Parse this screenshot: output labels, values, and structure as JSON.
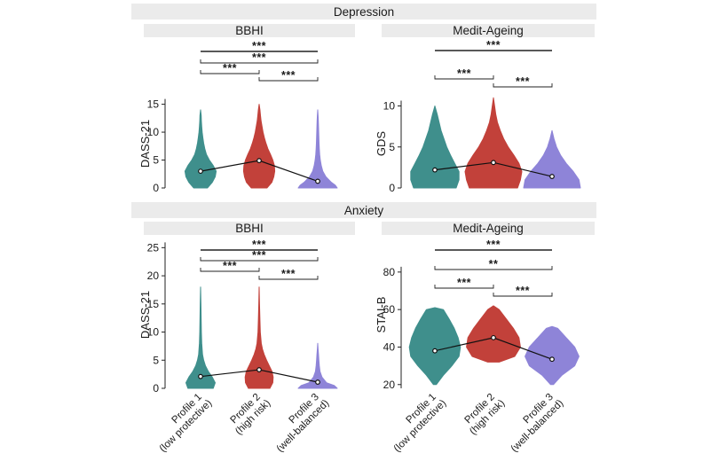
{
  "colors": {
    "profile1": "#3f8f8c",
    "profile2": "#c2413a",
    "profile3": "#8e84d8",
    "band": "#ebebeb"
  },
  "sections": [
    {
      "title": "Depression"
    },
    {
      "title": "Anxiety"
    }
  ],
  "x_categories": [
    [
      "Profile 1",
      "(low protective)"
    ],
    [
      "Profile 2",
      "(high risk)"
    ],
    [
      "Profile 3",
      "(well-balanced)"
    ]
  ],
  "chart_data": [
    {
      "type": "violin",
      "section": "Depression",
      "title": "BBHI",
      "ylabel": "DASS-21",
      "ylim": [
        0,
        17
      ],
      "yticks": [
        0,
        5,
        10,
        15
      ],
      "categories": [
        "Profile 1 (low protective)",
        "Profile 2 (high risk)",
        "Profile 3 (well-balanced)"
      ],
      "means": [
        3,
        4.9,
        1.2
      ],
      "series": [
        {
          "range": [
            0,
            14
          ],
          "density": [
            [
              0,
              0.35
            ],
            [
              1,
              0.6
            ],
            [
              2,
              0.75
            ],
            [
              3,
              0.8
            ],
            [
              4,
              0.65
            ],
            [
              5,
              0.45
            ],
            [
              6,
              0.3
            ],
            [
              7,
              0.22
            ],
            [
              8,
              0.16
            ],
            [
              9,
              0.12
            ],
            [
              10,
              0.08
            ],
            [
              11,
              0.06
            ],
            [
              12,
              0.04
            ],
            [
              13,
              0.03
            ],
            [
              14,
              0
            ]
          ]
        },
        {
          "range": [
            0,
            15
          ],
          "density": [
            [
              0,
              0.4
            ],
            [
              1,
              0.65
            ],
            [
              2,
              0.75
            ],
            [
              3,
              0.8
            ],
            [
              4,
              0.78
            ],
            [
              5,
              0.7
            ],
            [
              6,
              0.58
            ],
            [
              7,
              0.45
            ],
            [
              8,
              0.35
            ],
            [
              9,
              0.27
            ],
            [
              10,
              0.2
            ],
            [
              11,
              0.15
            ],
            [
              12,
              0.1
            ],
            [
              13,
              0.07
            ],
            [
              14,
              0.04
            ],
            [
              15,
              0
            ]
          ]
        },
        {
          "range": [
            0,
            14
          ],
          "density": [
            [
              0,
              1
            ],
            [
              0.5,
              0.9
            ],
            [
              1,
              0.7
            ],
            [
              2,
              0.42
            ],
            [
              3,
              0.26
            ],
            [
              4,
              0.18
            ],
            [
              5,
              0.13
            ],
            [
              6,
              0.1
            ],
            [
              7,
              0.08
            ],
            [
              8,
              0.07
            ],
            [
              9,
              0.06
            ],
            [
              10,
              0.05
            ],
            [
              11,
              0.04
            ],
            [
              12,
              0.03
            ],
            [
              13,
              0.02
            ],
            [
              14,
              0
            ]
          ]
        }
      ],
      "comparisons": [
        {
          "pair": [
            1,
            3
          ],
          "label": "***"
        },
        {
          "pair": [
            1,
            3
          ],
          "label": "***"
        },
        {
          "pair": [
            1,
            2
          ],
          "label": "***"
        },
        {
          "pair": [
            2,
            3
          ],
          "label": "***"
        }
      ]
    },
    {
      "type": "violin",
      "section": "Depression",
      "title": "Medit-Ageing",
      "ylabel": "GDS",
      "ylim": [
        0,
        12
      ],
      "yticks": [
        0,
        5,
        10
      ],
      "categories": [
        "Profile 1 (low protective)",
        "Profile 2 (high risk)",
        "Profile 3 (well-balanced)"
      ],
      "means": [
        2.2,
        3.1,
        1.4
      ],
      "series": [
        {
          "range": [
            0,
            10
          ],
          "density": [
            [
              0,
              0.75
            ],
            [
              1,
              0.85
            ],
            [
              2,
              0.85
            ],
            [
              3,
              0.7
            ],
            [
              4,
              0.55
            ],
            [
              5,
              0.42
            ],
            [
              6,
              0.32
            ],
            [
              7,
              0.22
            ],
            [
              8,
              0.15
            ],
            [
              9,
              0.08
            ],
            [
              10,
              0
            ]
          ]
        },
        {
          "range": [
            0,
            11
          ],
          "density": [
            [
              0,
              0.85
            ],
            [
              1,
              0.95
            ],
            [
              2,
              1
            ],
            [
              3,
              0.9
            ],
            [
              4,
              0.72
            ],
            [
              5,
              0.52
            ],
            [
              6,
              0.36
            ],
            [
              7,
              0.24
            ],
            [
              8,
              0.14
            ],
            [
              9,
              0.08
            ],
            [
              10,
              0.04
            ],
            [
              11,
              0
            ]
          ]
        },
        {
          "range": [
            0,
            7
          ],
          "density": [
            [
              0,
              1
            ],
            [
              1,
              0.95
            ],
            [
              2,
              0.75
            ],
            [
              3,
              0.5
            ],
            [
              4,
              0.3
            ],
            [
              5,
              0.16
            ],
            [
              6,
              0.07
            ],
            [
              7,
              0
            ]
          ]
        }
      ],
      "comparisons": [
        {
          "pair": [
            1,
            3
          ],
          "label": "***"
        },
        {
          "pair": [
            1,
            2
          ],
          "label": "***"
        },
        {
          "pair": [
            2,
            3
          ],
          "label": "***"
        }
      ]
    },
    {
      "type": "violin",
      "section": "Anxiety",
      "title": "BBHI",
      "ylabel": "DASS-21",
      "ylim": [
        0,
        26
      ],
      "yticks": [
        0,
        5,
        10,
        15,
        20,
        25
      ],
      "categories": [
        "Profile 1 (low protective)",
        "Profile 2 (high risk)",
        "Profile 3 (well-balanced)"
      ],
      "means": [
        2.1,
        3.3,
        1.1
      ],
      "series": [
        {
          "range": [
            0,
            18
          ],
          "density": [
            [
              0,
              0.65
            ],
            [
              1,
              0.75
            ],
            [
              2,
              0.6
            ],
            [
              3,
              0.4
            ],
            [
              4,
              0.25
            ],
            [
              5,
              0.16
            ],
            [
              6,
              0.1
            ],
            [
              8,
              0.06
            ],
            [
              10,
              0.04
            ],
            [
              12,
              0.03
            ],
            [
              15,
              0.02
            ],
            [
              18,
              0
            ]
          ]
        },
        {
          "range": [
            0,
            18
          ],
          "density": [
            [
              0,
              0.55
            ],
            [
              1,
              0.7
            ],
            [
              2,
              0.72
            ],
            [
              3,
              0.66
            ],
            [
              4,
              0.52
            ],
            [
              5,
              0.38
            ],
            [
              6,
              0.26
            ],
            [
              7,
              0.17
            ],
            [
              8,
              0.11
            ],
            [
              10,
              0.06
            ],
            [
              12,
              0.04
            ],
            [
              15,
              0.02
            ],
            [
              18,
              0
            ]
          ]
        },
        {
          "range": [
            0,
            8
          ],
          "density": [
            [
              0,
              1
            ],
            [
              0.5,
              0.85
            ],
            [
              1,
              0.45
            ],
            [
              2,
              0.22
            ],
            [
              3,
              0.12
            ],
            [
              4,
              0.08
            ],
            [
              5,
              0.06
            ],
            [
              6,
              0.04
            ],
            [
              7,
              0.02
            ],
            [
              8,
              0
            ]
          ]
        }
      ],
      "comparisons": [
        {
          "pair": [
            1,
            3
          ],
          "label": "***"
        },
        {
          "pair": [
            1,
            3
          ],
          "label": "***"
        },
        {
          "pair": [
            1,
            2
          ],
          "label": "***"
        },
        {
          "pair": [
            2,
            3
          ],
          "label": "***"
        }
      ]
    },
    {
      "type": "violin",
      "section": "Anxiety",
      "title": "Medit-Ageing",
      "ylabel": "STAI-B",
      "ylim": [
        18,
        96
      ],
      "yticks": [
        20,
        40,
        60,
        80
      ],
      "categories": [
        "Profile 1 (low protective)",
        "Profile 2 (high risk)",
        "Profile 3 (well-balanced)"
      ],
      "means": [
        38,
        45,
        33.5
      ],
      "series": [
        {
          "range": [
            20,
            61
          ],
          "density": [
            [
              20,
              0.05
            ],
            [
              25,
              0.3
            ],
            [
              30,
              0.6
            ],
            [
              35,
              0.85
            ],
            [
              40,
              0.9
            ],
            [
              45,
              0.82
            ],
            [
              50,
              0.68
            ],
            [
              55,
              0.5
            ],
            [
              60,
              0.3
            ],
            [
              61,
              0
            ]
          ]
        },
        {
          "range": [
            32,
            62
          ],
          "density": [
            [
              32,
              0.2
            ],
            [
              35,
              0.75
            ],
            [
              40,
              0.95
            ],
            [
              45,
              0.9
            ],
            [
              50,
              0.7
            ],
            [
              55,
              0.45
            ],
            [
              60,
              0.2
            ],
            [
              62,
              0
            ]
          ]
        },
        {
          "range": [
            20,
            51
          ],
          "density": [
            [
              20,
              0.05
            ],
            [
              25,
              0.35
            ],
            [
              30,
              0.8
            ],
            [
              35,
              0.95
            ],
            [
              40,
              0.8
            ],
            [
              45,
              0.5
            ],
            [
              50,
              0.2
            ],
            [
              51,
              0
            ]
          ]
        }
      ],
      "comparisons": [
        {
          "pair": [
            1,
            3
          ],
          "label": "***"
        },
        {
          "pair": [
            1,
            3
          ],
          "label": "**"
        },
        {
          "pair": [
            1,
            2
          ],
          "label": "***"
        },
        {
          "pair": [
            2,
            3
          ],
          "label": "***"
        }
      ]
    }
  ]
}
